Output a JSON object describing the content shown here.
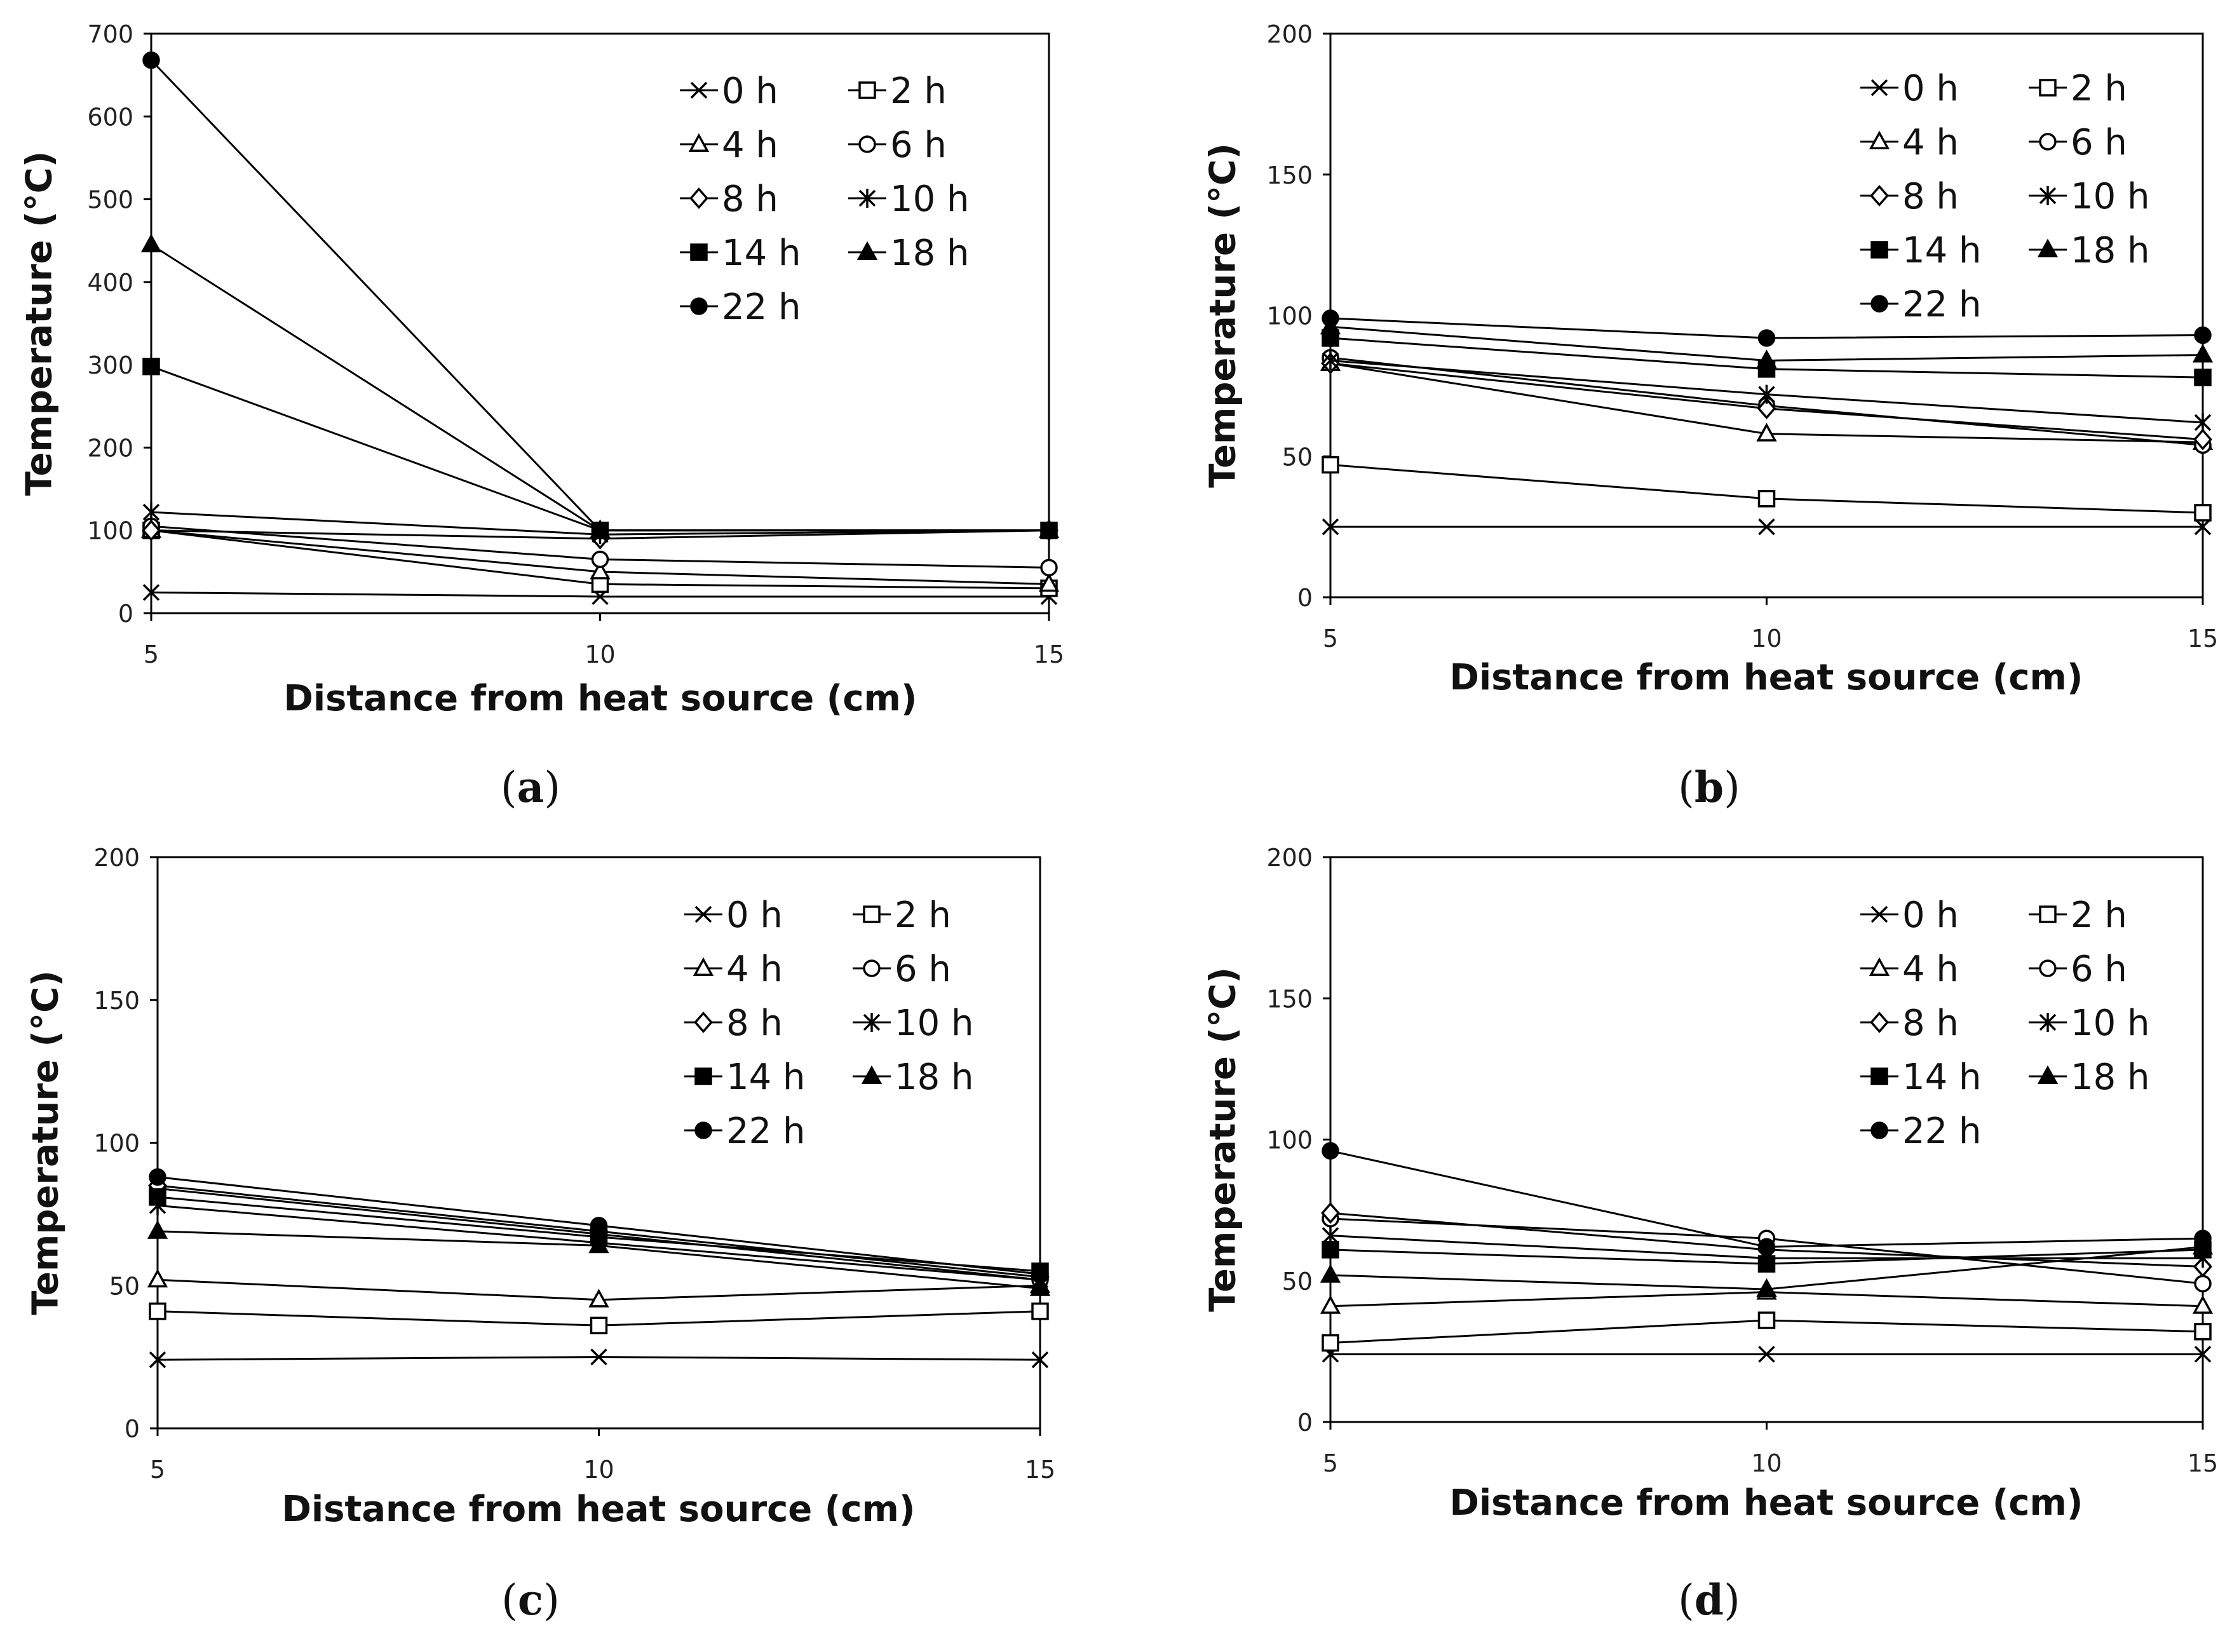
{
  "chart_data": [
    {
      "panel": "(a)",
      "panel_letter": "a",
      "type": "line",
      "xlabel": "Distance from heat source (cm)",
      "ylabel": "Temperature (°C)",
      "xlim": [
        5,
        15
      ],
      "ylim": [
        0,
        700
      ],
      "xticks": [
        5,
        10,
        15
      ],
      "yticks": [
        0,
        100,
        200,
        300,
        400,
        500,
        600,
        700
      ],
      "x": [
        5,
        10,
        15
      ],
      "series": [
        {
          "name": "0 h",
          "marker": "x",
          "values": [
            25,
            20,
            20
          ]
        },
        {
          "name": "2 h",
          "marker": "square-open",
          "values": [
            100,
            35,
            30
          ]
        },
        {
          "name": "4 h",
          "marker": "triangle-open",
          "values": [
            100,
            50,
            35
          ]
        },
        {
          "name": "6 h",
          "marker": "circle-open",
          "values": [
            105,
            65,
            55
          ]
        },
        {
          "name": "8 h",
          "marker": "diamond-open",
          "values": [
            100,
            90,
            100
          ]
        },
        {
          "name": "10 h",
          "marker": "asterisk",
          "values": [
            122,
            95,
            100
          ]
        },
        {
          "name": "14 h",
          "marker": "square-filled",
          "values": [
            298,
            100,
            100
          ]
        },
        {
          "name": "18 h",
          "marker": "triangle-filled",
          "values": [
            445,
            100,
            100
          ]
        },
        {
          "name": "22 h",
          "marker": "circle-filled",
          "values": [
            668,
            100,
            100
          ]
        }
      ]
    },
    {
      "panel": "(b)",
      "panel_letter": "b",
      "type": "line",
      "xlabel": "Distance from heat source (cm)",
      "ylabel": "Temperature (°C)",
      "xlim": [
        5,
        15
      ],
      "ylim": [
        0,
        200
      ],
      "xticks": [
        5,
        10,
        15
      ],
      "yticks": [
        0,
        50,
        100,
        150,
        200
      ],
      "x": [
        5,
        10,
        15
      ],
      "series": [
        {
          "name": "0 h",
          "marker": "x",
          "values": [
            25,
            25,
            25
          ]
        },
        {
          "name": "2 h",
          "marker": "square-open",
          "values": [
            47,
            35,
            30
          ]
        },
        {
          "name": "4 h",
          "marker": "triangle-open",
          "values": [
            83,
            58,
            55
          ]
        },
        {
          "name": "6 h",
          "marker": "circle-open",
          "values": [
            85,
            68,
            54
          ]
        },
        {
          "name": "8 h",
          "marker": "diamond-open",
          "values": [
            83,
            67,
            56
          ]
        },
        {
          "name": "10 h",
          "marker": "asterisk",
          "values": [
            84,
            72,
            62
          ]
        },
        {
          "name": "14 h",
          "marker": "square-filled",
          "values": [
            92,
            81,
            78
          ]
        },
        {
          "name": "18 h",
          "marker": "triangle-filled",
          "values": [
            96,
            84,
            86
          ]
        },
        {
          "name": "22 h",
          "marker": "circle-filled",
          "values": [
            99,
            92,
            93
          ]
        }
      ]
    },
    {
      "panel": "(c)",
      "panel_letter": "c",
      "type": "line",
      "xlabel": "Distance from heat source (cm)",
      "ylabel": "Temperature (°C)",
      "xlim": [
        5,
        15
      ],
      "ylim": [
        0,
        200
      ],
      "xticks": [
        5,
        10,
        15
      ],
      "yticks": [
        0,
        50,
        100,
        150,
        200
      ],
      "x": [
        5,
        10,
        15
      ],
      "series": [
        {
          "name": "0 h",
          "marker": "x",
          "values": [
            24,
            25,
            24
          ]
        },
        {
          "name": "2 h",
          "marker": "square-open",
          "values": [
            41,
            36,
            41
          ]
        },
        {
          "name": "4 h",
          "marker": "triangle-open",
          "values": [
            52,
            45,
            50
          ]
        },
        {
          "name": "6 h",
          "marker": "circle-open",
          "values": [
            84,
            68,
            52
          ]
        },
        {
          "name": "8 h",
          "marker": "diamond-open",
          "values": [
            85,
            69,
            53
          ]
        },
        {
          "name": "10 h",
          "marker": "asterisk",
          "values": [
            78,
            65,
            52
          ]
        },
        {
          "name": "14 h",
          "marker": "square-filled",
          "values": [
            81,
            67,
            55
          ]
        },
        {
          "name": "18 h",
          "marker": "triangle-filled",
          "values": [
            69,
            64,
            49
          ]
        },
        {
          "name": "22 h",
          "marker": "circle-filled",
          "values": [
            88,
            71,
            54
          ]
        }
      ]
    },
    {
      "panel": "(d)",
      "panel_letter": "d",
      "type": "line",
      "xlabel": "Distance from heat source (cm)",
      "ylabel": "Temperature (°C)",
      "xlim": [
        5,
        15
      ],
      "ylim": [
        0,
        200
      ],
      "xticks": [
        5,
        10,
        15
      ],
      "yticks": [
        0,
        50,
        100,
        150,
        200
      ],
      "x": [
        5,
        10,
        15
      ],
      "series": [
        {
          "name": "0 h",
          "marker": "x",
          "values": [
            24,
            24,
            24
          ]
        },
        {
          "name": "2 h",
          "marker": "square-open",
          "values": [
            28,
            36,
            32
          ]
        },
        {
          "name": "4 h",
          "marker": "triangle-open",
          "values": [
            41,
            46,
            41
          ]
        },
        {
          "name": "6 h",
          "marker": "circle-open",
          "values": [
            72,
            65,
            49
          ]
        },
        {
          "name": "8 h",
          "marker": "diamond-open",
          "values": [
            74,
            61,
            55
          ]
        },
        {
          "name": "10 h",
          "marker": "asterisk",
          "values": [
            66,
            58,
            58
          ]
        },
        {
          "name": "14 h",
          "marker": "square-filled",
          "values": [
            61,
            56,
            61
          ]
        },
        {
          "name": "18 h",
          "marker": "triangle-filled",
          "values": [
            52,
            47,
            62
          ]
        },
        {
          "name": "22 h",
          "marker": "circle-filled",
          "values": [
            96,
            62,
            65
          ]
        }
      ]
    }
  ]
}
